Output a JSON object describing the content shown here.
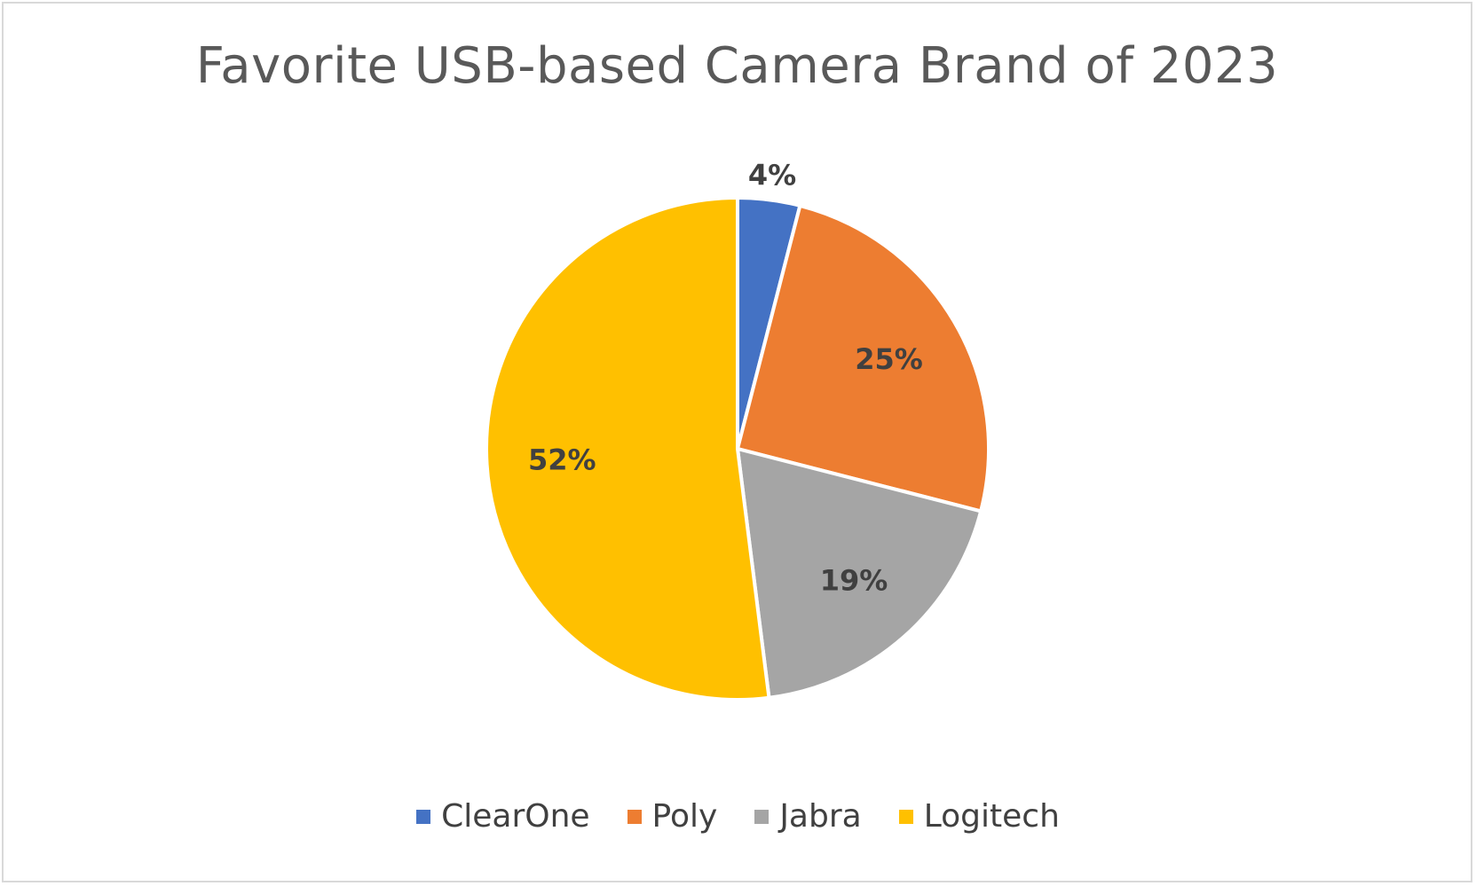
{
  "chart_data": {
    "type": "pie",
    "title": "Favorite USB-based Camera Brand of 2023",
    "categories": [
      "ClearOne",
      "Poly",
      "Jabra",
      "Logitech"
    ],
    "values": [
      4,
      25,
      19,
      52
    ],
    "data_labels": [
      "4%",
      "25%",
      "19%",
      "52%"
    ],
    "colors": [
      "#4472c4",
      "#ed7d31",
      "#a5a5a5",
      "#ffc000"
    ],
    "legend_position": "bottom",
    "label_color": "#404040"
  }
}
